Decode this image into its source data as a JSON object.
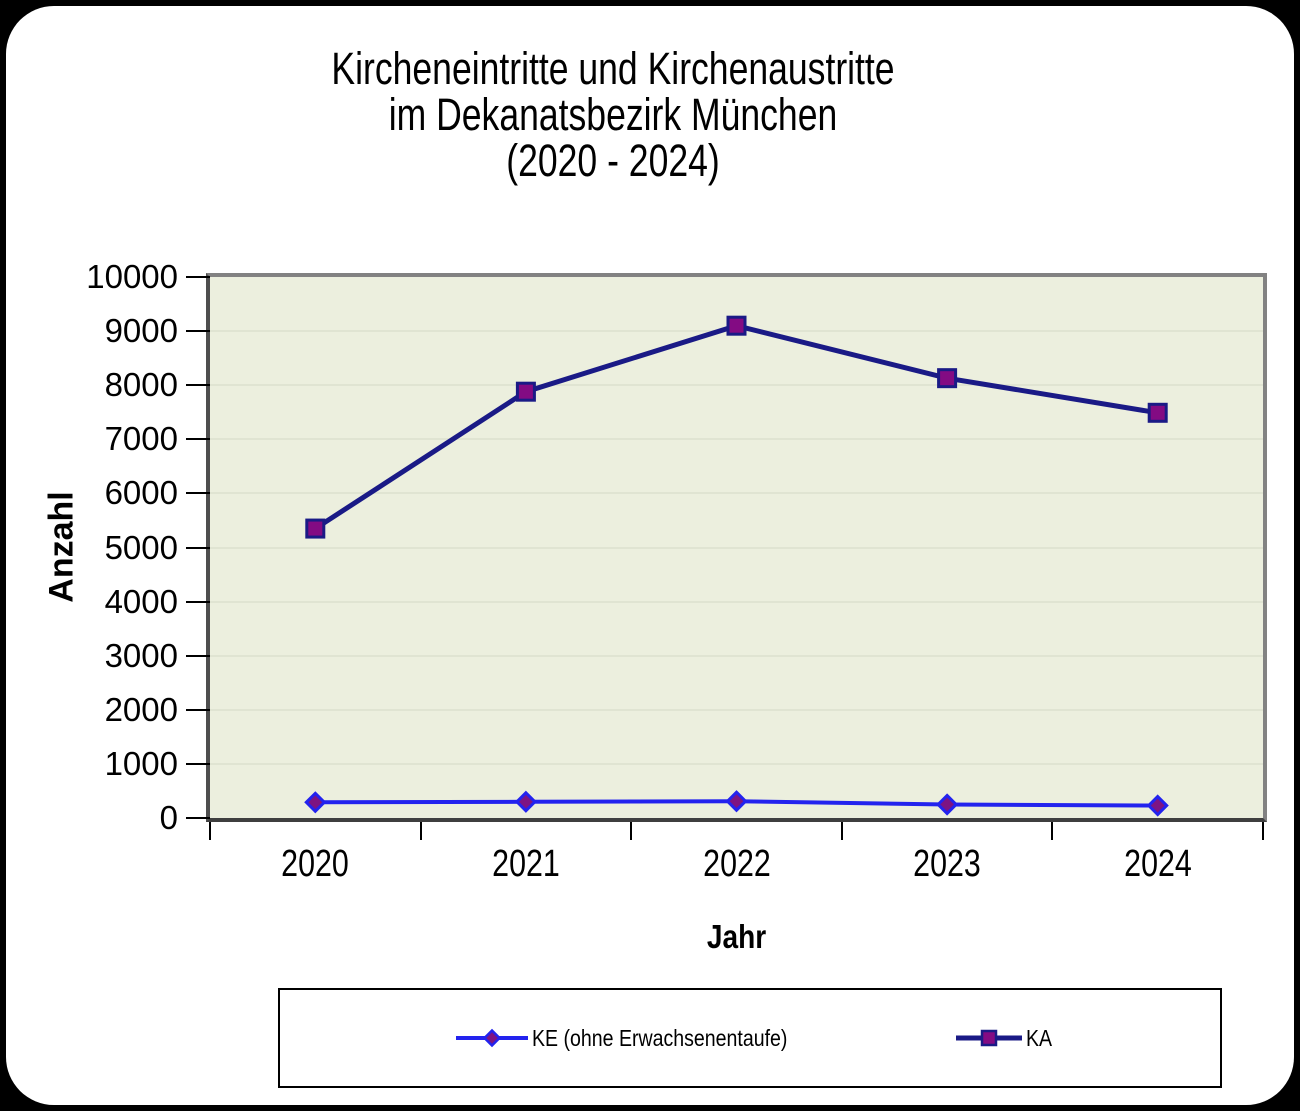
{
  "chart_data": {
    "type": "line",
    "title": "Kircheneintritte und Kirchenaustritte im Dekanatsbezirk München (2020 - 2024)",
    "title_lines": [
      "Kircheneintritte und Kirchenaustritte",
      "im Dekanatsbezirk München",
      "(2020 - 2024)"
    ],
    "xlabel": "Jahr",
    "ylabel": "Anzahl",
    "categories": [
      "2020",
      "2021",
      "2022",
      "2023",
      "2024"
    ],
    "series": [
      {
        "name": "KE (ohne Erwachsenentaufe)",
        "values": [
          290,
          300,
          310,
          250,
          230
        ],
        "color": "#2323ee",
        "marker": "diamond",
        "marker_fill": "#7d1483"
      },
      {
        "name": "KA",
        "values": [
          5350,
          7880,
          9100,
          8130,
          7490
        ],
        "color": "#1a1a86",
        "marker": "square",
        "marker_fill": "#830b83"
      }
    ],
    "ylim": [
      0,
      10000
    ],
    "yticks": [
      0,
      1000,
      2000,
      3000,
      4000,
      5000,
      6000,
      7000,
      8000,
      9000,
      10000
    ],
    "grid": true,
    "legend_position": "bottom",
    "colors": {
      "page_bg": "#000000",
      "card_bg": "#ffffff",
      "plot_bg": "#ecefde",
      "grid": "#e0e4d2",
      "frame": "#828282",
      "tick": "#000000",
      "legend_border": "#000000"
    }
  }
}
